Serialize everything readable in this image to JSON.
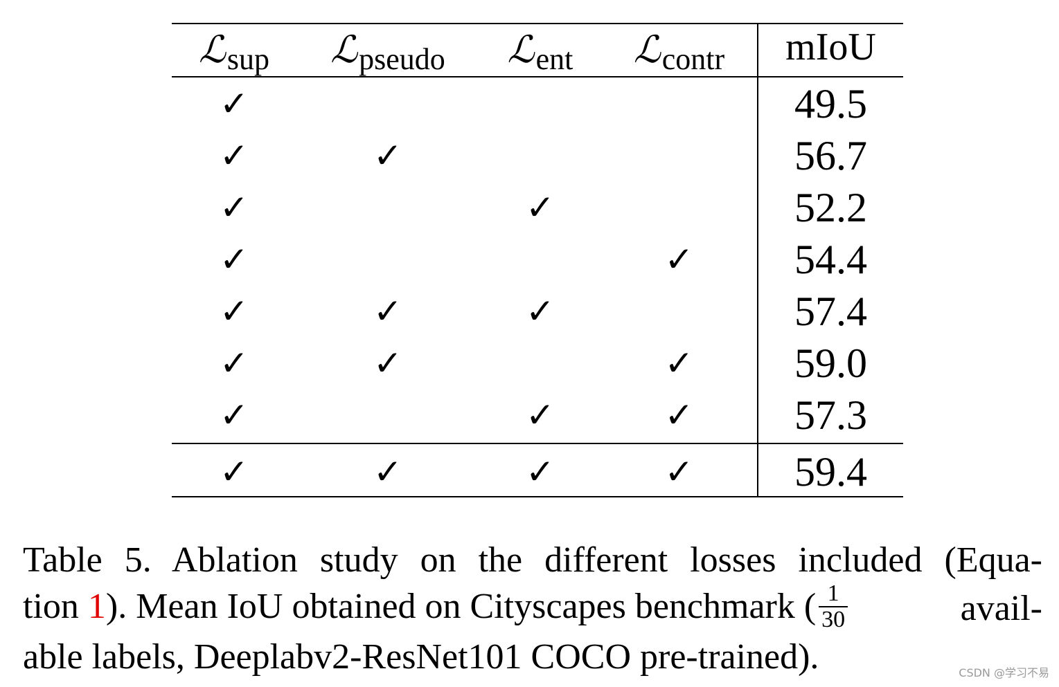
{
  "table": {
    "headers": [
      {
        "symbol": "ℒ",
        "sub": "sup"
      },
      {
        "symbol": "ℒ",
        "sub": "pseudo"
      },
      {
        "symbol": "ℒ",
        "sub": "ent"
      },
      {
        "symbol": "ℒ",
        "sub": "contr"
      }
    ],
    "metric_header": "mIoU",
    "check_mark": "✓",
    "rows": [
      {
        "checks": [
          true,
          false,
          false,
          false
        ],
        "miou": "49.5"
      },
      {
        "checks": [
          true,
          true,
          false,
          false
        ],
        "miou": "56.7"
      },
      {
        "checks": [
          true,
          false,
          true,
          false
        ],
        "miou": "52.2"
      },
      {
        "checks": [
          true,
          false,
          false,
          true
        ],
        "miou": "54.4"
      },
      {
        "checks": [
          true,
          true,
          true,
          false
        ],
        "miou": "57.4"
      },
      {
        "checks": [
          true,
          true,
          false,
          true
        ],
        "miou": "59.0"
      },
      {
        "checks": [
          true,
          false,
          true,
          true
        ],
        "miou": "57.3"
      },
      {
        "checks": [
          true,
          true,
          true,
          true
        ],
        "miou": "59.4"
      }
    ]
  },
  "caption": {
    "line1": "Table 5. Ablation study on the different losses included (Equa-",
    "line2_a": "tion ",
    "line2_ref": "1",
    "line2_b": "). Mean IoU obtained on Cityscapes benchmark (",
    "frac_num": "1",
    "frac_den": "30",
    "line2_c": " avail-",
    "line3": "able labels, Deeplabv2-ResNet101 COCO pre-trained)."
  },
  "watermark": "CSDN @学习不易"
}
